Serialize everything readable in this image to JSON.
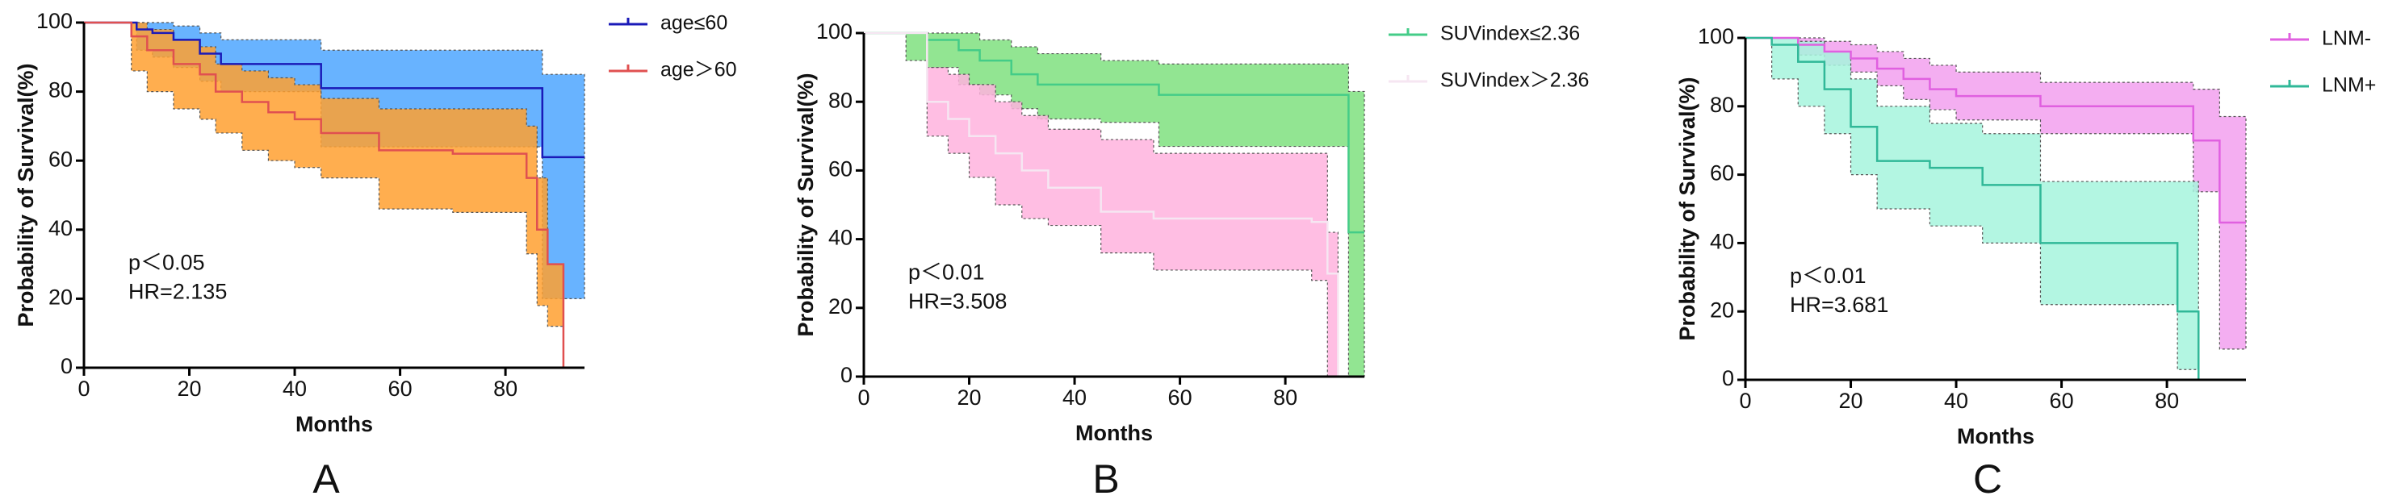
{
  "chart_data": [
    {
      "type": "step",
      "panel": "A",
      "xlabel": "Months",
      "ylabel": "Probability of Survival(%)",
      "annotations": [
        "p＜0.05",
        "HR=2.135"
      ],
      "xlim": [
        0,
        95
      ],
      "xticks": [
        0,
        20,
        40,
        60,
        80
      ],
      "ylim": [
        0,
        100
      ],
      "yticks": [
        0,
        20,
        40,
        60,
        80,
        100
      ],
      "series": [
        {
          "name": "age≤60",
          "color": "#1a1ab8",
          "band_color": "#4da6ff",
          "x": [
            0,
            10,
            13,
            17,
            22,
            26,
            45,
            87,
            95
          ],
          "values": [
            100,
            98,
            97,
            95,
            91,
            88,
            81,
            61,
            61
          ],
          "upper": [
            100,
            100,
            100,
            99,
            97,
            95,
            92,
            85,
            85
          ],
          "lower": [
            100,
            92,
            90,
            87,
            83,
            80,
            64,
            20,
            20
          ]
        },
        {
          "name": "age＞60",
          "color": "#e05050",
          "band_color": "#ffa030",
          "x": [
            0,
            9,
            12,
            17,
            22,
            25,
            30,
            35,
            40,
            45,
            56,
            70,
            80,
            84,
            86,
            88,
            91
          ],
          "values": [
            100,
            96,
            92,
            88,
            85,
            80,
            77,
            74,
            72,
            68,
            63,
            62,
            62,
            55,
            40,
            30,
            0
          ],
          "upper": [
            100,
            100,
            98,
            95,
            93,
            88,
            86,
            84,
            82,
            78,
            75,
            75,
            75,
            70,
            55,
            30,
            0
          ],
          "lower": [
            100,
            86,
            80,
            75,
            72,
            68,
            63,
            60,
            58,
            55,
            46,
            45,
            45,
            33,
            18,
            12,
            0
          ]
        }
      ]
    },
    {
      "type": "step",
      "panel": "B",
      "xlabel": "Months",
      "ylabel": "Probability of Survival(%)",
      "annotations": [
        "p＜0.01",
        "HR=3.508"
      ],
      "xlim": [
        0,
        95
      ],
      "xticks": [
        0,
        20,
        40,
        60,
        80
      ],
      "ylim": [
        0,
        100
      ],
      "yticks": [
        0,
        20,
        40,
        60,
        80,
        100
      ],
      "series": [
        {
          "name": "SUVindex≤2.36",
          "color": "#44cc88",
          "band_color": "#7fe07f",
          "x": [
            0,
            8,
            12,
            18,
            22,
            28,
            33,
            45,
            56,
            92,
            95
          ],
          "values": [
            100,
            100,
            98,
            95,
            92,
            88,
            85,
            85,
            82,
            42,
            42
          ],
          "upper": [
            100,
            100,
            100,
            100,
            98,
            96,
            94,
            92,
            91,
            83,
            83
          ],
          "lower": [
            100,
            92,
            90,
            85,
            82,
            78,
            75,
            74,
            67,
            0,
            0
          ]
        },
        {
          "name": "SUVindex＞2.36",
          "color": "#f6e6f2",
          "band_color": "#ffb3de",
          "x": [
            0,
            12,
            16,
            20,
            25,
            30,
            35,
            45,
            55,
            85,
            88,
            90
          ],
          "values": [
            100,
            80,
            75,
            70,
            65,
            60,
            55,
            48,
            46,
            45,
            30,
            0
          ],
          "upper": [
            100,
            90,
            88,
            85,
            80,
            76,
            72,
            69,
            65,
            65,
            42,
            42
          ],
          "lower": [
            100,
            70,
            65,
            58,
            50,
            46,
            44,
            36,
            31,
            28,
            0,
            0
          ]
        }
      ]
    },
    {
      "type": "step",
      "panel": "C",
      "xlabel": "Months",
      "ylabel": "Probability of Survival(%)",
      "annotations": [
        "p＜0.01",
        "HR=3.681"
      ],
      "xlim": [
        0,
        95
      ],
      "xticks": [
        0,
        20,
        40,
        60,
        80
      ],
      "ylim": [
        0,
        100
      ],
      "yticks": [
        0,
        20,
        40,
        60,
        80,
        100
      ],
      "series": [
        {
          "name": "LNM-",
          "color": "#e060e0",
          "band_color": "#f2a0ee",
          "x": [
            0,
            10,
            15,
            20,
            25,
            30,
            35,
            40,
            56,
            85,
            90,
            95
          ],
          "values": [
            100,
            98,
            96,
            94,
            91,
            88,
            85,
            83,
            80,
            70,
            46,
            46
          ],
          "upper": [
            100,
            100,
            99,
            98,
            96,
            94,
            92,
            90,
            87,
            85,
            77,
            77
          ],
          "lower": [
            100,
            95,
            92,
            90,
            86,
            82,
            79,
            76,
            72,
            55,
            9,
            9
          ]
        },
        {
          "name": "LNM+",
          "color": "#30b898",
          "band_color": "#a6f5dd",
          "x": [
            0,
            5,
            10,
            15,
            20,
            25,
            35,
            45,
            56,
            82,
            86,
            87
          ],
          "values": [
            100,
            98,
            93,
            85,
            74,
            64,
            62,
            57,
            40,
            20,
            0,
            0
          ],
          "upper": [
            100,
            100,
            99,
            96,
            88,
            80,
            75,
            72,
            58,
            58,
            0,
            0
          ],
          "lower": [
            100,
            88,
            80,
            72,
            60,
            50,
            45,
            40,
            22,
            3,
            0,
            0
          ]
        }
      ]
    }
  ]
}
